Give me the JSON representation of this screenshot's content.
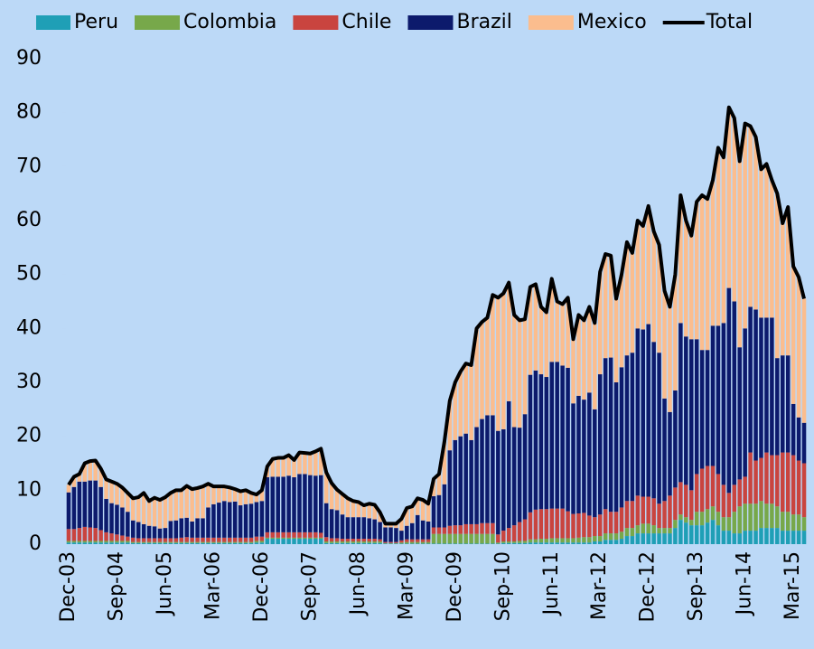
{
  "chart_data": {
    "type": "bar",
    "stacked": true,
    "categories": [
      "Dec-03",
      null,
      null,
      null,
      null,
      null,
      null,
      null,
      null,
      "Sep-04",
      null,
      null,
      null,
      null,
      null,
      null,
      null,
      null,
      "Jun-05",
      null,
      null,
      null,
      null,
      null,
      null,
      null,
      null,
      "Mar-06",
      null,
      null,
      null,
      null,
      null,
      null,
      null,
      null,
      "Dec-06",
      null,
      null,
      null,
      null,
      null,
      null,
      null,
      null,
      "Sep-07",
      null,
      null,
      null,
      null,
      null,
      null,
      null,
      null,
      "Jun-08",
      null,
      null,
      null,
      null,
      null,
      null,
      null,
      null,
      "Mar-09",
      null,
      null,
      null,
      null,
      null,
      null,
      null,
      null,
      "Dec-09",
      null,
      null,
      null,
      null,
      null,
      null,
      null,
      null,
      "Sep-10",
      null,
      null,
      null,
      null,
      null,
      null,
      null,
      null,
      "Jun-11",
      null,
      null,
      null,
      null,
      null,
      null,
      null,
      null,
      "Mar-12",
      null,
      null,
      null,
      null,
      null,
      null,
      null,
      null,
      "Dec-12",
      null,
      null,
      null,
      null,
      null,
      null,
      null,
      null,
      "Sep-13",
      null,
      null,
      null,
      null,
      null,
      null,
      null,
      null,
      "Jun-14",
      null,
      null,
      null,
      null,
      null,
      null,
      null,
      null,
      "Mar-15",
      null,
      null
    ],
    "series": [
      {
        "name": "Peru",
        "color": "#1f9fb6",
        "type": "bar",
        "values": [
          0.3,
          0.3,
          0.3,
          0.3,
          0.3,
          0.3,
          0.3,
          0.3,
          0.3,
          0.3,
          0.3,
          0.3,
          0.2,
          0.2,
          0.2,
          0.2,
          0.2,
          0.2,
          0.2,
          0.2,
          0.2,
          0.2,
          0.2,
          0.2,
          0.2,
          0.2,
          0.2,
          0.2,
          0.2,
          0.2,
          0.2,
          0.2,
          0.2,
          0.2,
          0.2,
          0.3,
          0.3,
          1.0,
          1.0,
          1.0,
          1.0,
          1.0,
          1.0,
          1.0,
          1.0,
          1.0,
          1.0,
          1.0,
          0.2,
          0.2,
          0.2,
          0.2,
          0.2,
          0.2,
          0.2,
          0.2,
          0.2,
          0.2,
          0.2,
          0.1,
          0.1,
          0.1,
          0.1,
          0.1,
          0.1,
          0.1,
          0.1,
          0.1,
          0.1,
          0.1,
          0.1,
          0.1,
          0.1,
          0.1,
          0.1,
          0.1,
          0.1,
          0.1,
          0.1,
          0.1,
          0.1,
          0.2,
          0.2,
          0.2,
          0.2,
          0.2,
          0.3,
          0.3,
          0.3,
          0.3,
          0.3,
          0.3,
          0.3,
          0.3,
          0.3,
          0.3,
          0.3,
          0.3,
          0.5,
          0.5,
          0.8,
          0.8,
          0.8,
          1.0,
          1.5,
          1.5,
          2,
          2,
          2,
          2,
          2,
          2,
          2,
          3,
          4.5,
          4,
          3.5,
          3.5,
          3.5,
          4,
          4.5,
          3.5,
          2.5,
          2.5,
          2,
          2,
          2.5,
          2.5,
          2.5,
          3,
          3,
          3,
          3,
          2.5,
          2.5,
          2.5,
          2.5,
          2.5
        ]
      },
      {
        "name": "Colombia",
        "color": "#77a84a",
        "type": "bar",
        "values": [
          0.3,
          0.3,
          0.3,
          0.3,
          0.3,
          0.3,
          0.3,
          0.3,
          0.3,
          0.3,
          0.3,
          0.3,
          0.2,
          0.2,
          0.2,
          0.2,
          0.2,
          0.2,
          0.2,
          0.2,
          0.2,
          0.2,
          0.2,
          0.2,
          0.2,
          0.2,
          0.2,
          0.2,
          0.2,
          0.2,
          0.2,
          0.2,
          0.2,
          0.2,
          0.2,
          0.3,
          0.3,
          0.2,
          0.2,
          0.2,
          0.2,
          0.2,
          0.2,
          0.2,
          0.2,
          0.2,
          0.2,
          0.2,
          0.3,
          0.3,
          0.3,
          0.3,
          0.3,
          0.3,
          0.3,
          0.3,
          0.3,
          0.3,
          0.3,
          0.1,
          0.1,
          0.1,
          0.2,
          0.3,
          0.3,
          0.3,
          0.3,
          0.3,
          1.8,
          1.8,
          1.8,
          1.8,
          1.8,
          1.8,
          1.8,
          1.8,
          1.8,
          1.8,
          1.8,
          1.8,
          0.2,
          0.3,
          0.3,
          0.3,
          0.4,
          0.4,
          0.6,
          0.6,
          0.7,
          0.7,
          0.8,
          0.8,
          0.8,
          0.8,
          0.8,
          0.9,
          1,
          1,
          1,
          1,
          1.2,
          1.2,
          1.2,
          1.3,
          1.5,
          1.5,
          1.5,
          1.8,
          1.8,
          1.5,
          1,
          1,
          1,
          1.5,
          1,
          1,
          1,
          2.5,
          2.5,
          2.5,
          2.5,
          2.5,
          2.5,
          2.5,
          4,
          5,
          5,
          5,
          5,
          5,
          4.5,
          4.5,
          4,
          3.5,
          3.5,
          3,
          3,
          2.5
        ]
      },
      {
        "name": "Chile",
        "color": "#c9443f",
        "type": "bar",
        "values": [
          2.2,
          2.2,
          2.4,
          2.6,
          2.5,
          2.4,
          2.0,
          1.6,
          1.4,
          1.2,
          1.0,
          0.8,
          0.8,
          0.7,
          0.7,
          0.7,
          0.7,
          0.7,
          0.7,
          0.7,
          0.7,
          0.8,
          0.9,
          0.8,
          0.8,
          0.8,
          0.8,
          0.8,
          0.8,
          0.8,
          0.8,
          0.8,
          0.8,
          0.8,
          0.8,
          0.8,
          0.8,
          1,
          1,
          1,
          1,
          1,
          1,
          1,
          1,
          1,
          1,
          0.9,
          0.8,
          0.6,
          0.6,
          0.5,
          0.5,
          0.5,
          0.5,
          0.5,
          0.5,
          0.5,
          0.4,
          0.2,
          0.2,
          0.2,
          0.4,
          0.5,
          0.5,
          0.5,
          0.5,
          0.5,
          1.2,
          1.2,
          1.2,
          1.5,
          1.6,
          1.6,
          1.8,
          1.8,
          1.8,
          2.0,
          2.0,
          2.0,
          1.5,
          2,
          2.5,
          3,
          3.5,
          4,
          5,
          5.5,
          5.5,
          5.5,
          5.5,
          5.5,
          5.5,
          5,
          4.5,
          4.5,
          4.5,
          4,
          3.5,
          4,
          4.5,
          4,
          4,
          4.5,
          5,
          5,
          5.5,
          5,
          5,
          5,
          4.5,
          5,
          6,
          6,
          6,
          6,
          5.5,
          7,
          8,
          8,
          7.5,
          7,
          6,
          4.5,
          5,
          5,
          5,
          9.5,
          8,
          8,
          9.5,
          9,
          9.5,
          11,
          11,
          11,
          10,
          10
        ]
      },
      {
        "name": "Brazil",
        "color": "#0c1a6c",
        "type": "bar",
        "values": [
          6.8,
          7.8,
          8.6,
          8.4,
          8.7,
          8.8,
          8.0,
          6.2,
          5.6,
          5.5,
          5.2,
          4.6,
          3.2,
          3.0,
          2.6,
          2.3,
          2.2,
          1.8,
          1.9,
          3.2,
          3.3,
          3.6,
          3.6,
          3.0,
          3.6,
          3.6,
          5.6,
          6.2,
          6.5,
          6.8,
          6.6,
          6.7,
          6.0,
          6.2,
          6.3,
          6.4,
          6.6,
          10.2,
          10.3,
          10.3,
          10.3,
          10.5,
          10.2,
          10.8,
          10.8,
          10.6,
          10.5,
          10.7,
          6.3,
          5.4,
          5.2,
          4.5,
          4.0,
          4.0,
          4.0,
          4.0,
          3.8,
          3.6,
          3.2,
          2.7,
          2.7,
          2.6,
          1.8,
          2.5,
          3.0,
          4.5,
          3.5,
          3.3,
          5.8,
          6.0,
          8.0,
          14.0,
          15.8,
          16.5,
          16.8,
          15.6,
          18.0,
          19.3,
          20.0,
          20.0,
          19.2,
          18.8,
          23.5,
          18.2,
          17.5,
          19.5,
          25.5,
          25.8,
          25.0,
          24.5,
          27.2,
          27.2,
          26.5,
          26.6,
          20.5,
          21.8,
          21.0,
          22.8,
          20.0,
          26.0,
          28.0,
          28.6,
          24.0,
          26.0,
          27.0,
          27.5,
          31.0,
          31.0,
          32.0,
          29.0,
          28.0,
          19.0,
          15.5,
          18.0,
          29.5,
          27.5,
          28.0,
          25.0,
          22.0,
          21.5,
          26.0,
          27.5,
          30.0,
          38.0,
          34.0,
          24.5,
          27.5,
          27.0,
          28.0,
          26.0,
          25.0,
          25.5,
          18.0,
          18.0,
          18.0,
          9.5,
          8.0,
          7.5
        ]
      },
      {
        "name": "Mexico",
        "color": "#fbbd8e",
        "type": "bar",
        "values": [
          1.4,
          1.9,
          1.4,
          3.4,
          3.6,
          3.7,
          3.4,
          3.6,
          4.0,
          3.9,
          3.7,
          3.5,
          4.1,
          4.6,
          5.8,
          4.6,
          5.3,
          5.3,
          5.7,
          5.2,
          5.6,
          5.2,
          5.9,
          6.0,
          5.6,
          5.9,
          4.4,
          3.3,
          3.0,
          2.7,
          2.7,
          2.3,
          2.6,
          2.6,
          2.0,
          1.4,
          2.0,
          2.0,
          3.3,
          3.5,
          3.5,
          3.8,
          3.2,
          4.0,
          3.9,
          4.0,
          4.5,
          4.9,
          5.7,
          4.8,
          3.8,
          3.8,
          3.5,
          3.0,
          2.8,
          2.2,
          2.7,
          2.7,
          1.8,
          0.7,
          0.7,
          0.8,
          2.2,
          3.3,
          3.1,
          3.1,
          3.8,
          3.3,
          3.2,
          3.9,
          7.9,
          9.2,
          10.7,
          12.0,
          13.0,
          13.9,
          18.3,
          18.0,
          18.1,
          22.3,
          24.7,
          25.2,
          22.0,
          20.8,
          19.9,
          17.6,
          16.3,
          16.0,
          12.5,
          12.0,
          15.4,
          11.2,
          11.4,
          13.0,
          11.9,
          15.0,
          14.7,
          15.9,
          16.0,
          19.0,
          19.3,
          18.9,
          15.5,
          17.2,
          21.0,
          18.5,
          20.0,
          19.2,
          21.9,
          20.5,
          20.0,
          20.0,
          19.5,
          21.5,
          23.7,
          21.5,
          19.2,
          25.5,
          28.7,
          28.0,
          27.0,
          33.0,
          30.7,
          33.5,
          34.0,
          34.5,
          38.0,
          33.5,
          32.0,
          27.5,
          28.5,
          25.5,
          30.5,
          24.5,
          27.5,
          25.5,
          26.0,
          23.0
        ]
      },
      {
        "name": "Total",
        "color": "#000000",
        "type": "line",
        "values": [
          11.0,
          12.5,
          13.0,
          15.0,
          15.4,
          15.5,
          14.0,
          12.0,
          11.6,
          11.2,
          10.5,
          9.5,
          8.5,
          8.7,
          9.5,
          8.0,
          8.6,
          8.2,
          8.7,
          9.5,
          10.0,
          10.0,
          10.8,
          10.2,
          10.4,
          10.7,
          11.2,
          10.7,
          10.7,
          10.7,
          10.5,
          10.2,
          9.8,
          10.0,
          9.5,
          9.2,
          10.0,
          14.4,
          15.8,
          16.0,
          16.0,
          16.5,
          15.6,
          17.0,
          16.9,
          16.8,
          17.2,
          17.7,
          13.3,
          11.3,
          10.1,
          9.3,
          8.5,
          8.0,
          7.8,
          7.2,
          7.5,
          7.3,
          5.9,
          3.8,
          3.8,
          3.8,
          4.7,
          6.7,
          7.0,
          8.5,
          8.2,
          7.5,
          12.1,
          13.0,
          19.0,
          26.6,
          30.0,
          32.0,
          33.5,
          33.2,
          40.0,
          41.2,
          42.0,
          46.2,
          45.7,
          46.5,
          48.5,
          42.5,
          41.5,
          41.7,
          47.7,
          48.2,
          44.0,
          43.0,
          49.2,
          45.0,
          44.5,
          45.7,
          38.0,
          42.5,
          41.5,
          44.0,
          41.0,
          50.5,
          53.8,
          53.5,
          45.5,
          50.0,
          56.0,
          54.0,
          60.0,
          59.0,
          62.7,
          58.0,
          55.5,
          47.0,
          44.0,
          50.0,
          64.7,
          60.0,
          57.2,
          63.5,
          64.7,
          64.0,
          67.5,
          73.5,
          71.7,
          81.0,
          79.0,
          71.0,
          78.0,
          77.5,
          75.5,
          69.5,
          70.5,
          67.5,
          65.0,
          59.5,
          62.5,
          51.5,
          49.5,
          45.5
        ]
      }
    ],
    "ylim": [
      0,
      90
    ],
    "yticks": [
      0,
      10,
      20,
      30,
      40,
      50,
      60,
      70,
      80,
      90
    ],
    "grid": false,
    "legend": "top"
  }
}
